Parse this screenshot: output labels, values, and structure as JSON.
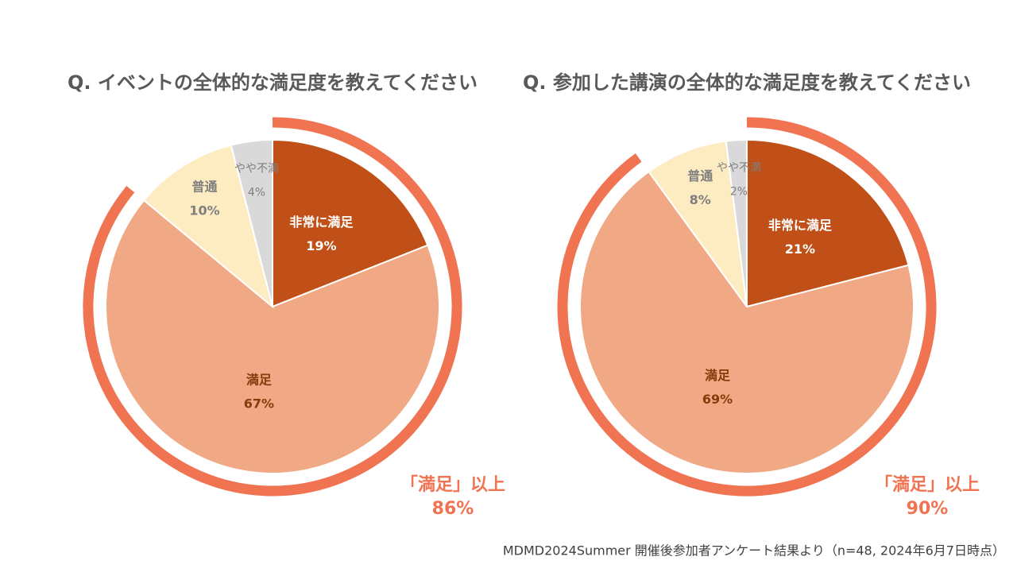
{
  "chart_data": [
    {
      "type": "pie",
      "title": "Q. イベントの全体的な満足度を教えてください",
      "categories": [
        "非常に満足",
        "満足",
        "普通",
        "やや不満"
      ],
      "values": [
        19,
        67,
        10,
        4
      ],
      "value_labels": [
        "19%",
        "67%",
        "10%",
        "4%"
      ],
      "colors": [
        "#c05017",
        "#f1a985",
        "#fdecc1",
        "#d9d9d9"
      ],
      "highlight": {
        "label": "「満足」以上",
        "value": 86,
        "value_label": "86%",
        "color": "#f07352"
      }
    },
    {
      "type": "pie",
      "title": "Q. 参加した講演の全体的な満足度を教えてください",
      "categories": [
        "非常に満足",
        "満足",
        "普通",
        "やや不満"
      ],
      "values": [
        21,
        69,
        8,
        2
      ],
      "value_labels": [
        "21%",
        "69%",
        "8%",
        "2%"
      ],
      "colors": [
        "#c05017",
        "#f1a985",
        "#fdecc1",
        "#d9d9d9"
      ],
      "highlight": {
        "label": "「満足」以上",
        "value": 90,
        "value_label": "90%",
        "color": "#f07352"
      }
    }
  ],
  "footnote": "MDMD2024Summer 開催後参加者アンケート結果より（n=48, 2024年6月7日時点）"
}
